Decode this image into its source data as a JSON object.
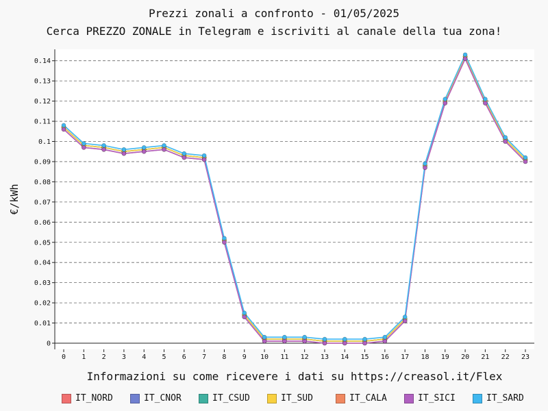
{
  "header": {
    "title": "Prezzi zonali a confronto - 01/05/2025",
    "subtitle": "Cerca PREZZO ZONALE in Telegram e iscriviti al canale della tua zona!"
  },
  "footer": {
    "text": "Informazioni su come ricevere i dati su https://creasol.it/Flex"
  },
  "chart_data": {
    "type": "line",
    "title": "Prezzi zonali a confronto - 01/05/2025",
    "xlabel": "",
    "ylabel": "€/kWh",
    "x": [
      0,
      1,
      2,
      3,
      4,
      5,
      6,
      7,
      8,
      9,
      10,
      11,
      12,
      13,
      14,
      15,
      16,
      17,
      18,
      19,
      20,
      21,
      22,
      23
    ],
    "x_ticks": [
      "0",
      "1",
      "2",
      "3",
      "4",
      "5",
      "6",
      "7",
      "8",
      "9",
      "10",
      "11",
      "12",
      "13",
      "14",
      "15",
      "16",
      "17",
      "18",
      "19",
      "20",
      "21",
      "22",
      "23"
    ],
    "y_ticks": [
      "0",
      "0.01",
      "0.02",
      "0.03",
      "0.04",
      "0.05",
      "0.06",
      "0.07",
      "0.08",
      "0.09",
      "0.1",
      "0.11",
      "0.12",
      "0.13",
      "0.14"
    ],
    "xlim": [
      0,
      23
    ],
    "ylim": [
      0,
      0.146
    ],
    "grid": "horizontal dashed",
    "legend_position": "bottom",
    "series": [
      {
        "name": "IT_NORD",
        "color": "#f07070",
        "values": [
          0.107,
          0.098,
          0.097,
          0.095,
          0.096,
          0.097,
          0.093,
          0.092,
          0.051,
          0.014,
          0.002,
          0.002,
          0.002,
          0.001,
          0.001,
          0.001,
          0.002,
          0.012,
          0.088,
          0.12,
          0.142,
          0.12,
          0.101,
          0.091
        ]
      },
      {
        "name": "IT_CNOR",
        "color": "#7080d0",
        "values": [
          0.107,
          0.098,
          0.097,
          0.095,
          0.096,
          0.097,
          0.093,
          0.092,
          0.051,
          0.014,
          0.002,
          0.002,
          0.002,
          0.001,
          0.001,
          0.001,
          0.002,
          0.012,
          0.088,
          0.12,
          0.142,
          0.12,
          0.101,
          0.091
        ]
      },
      {
        "name": "IT_CSUD",
        "color": "#40b0a0",
        "values": [
          0.107,
          0.098,
          0.097,
          0.095,
          0.096,
          0.097,
          0.093,
          0.092,
          0.051,
          0.014,
          0.002,
          0.002,
          0.002,
          0.001,
          0.001,
          0.001,
          0.002,
          0.012,
          0.088,
          0.12,
          0.142,
          0.12,
          0.101,
          0.091
        ]
      },
      {
        "name": "IT_SUD",
        "color": "#f8d040",
        "values": [
          0.107,
          0.098,
          0.097,
          0.095,
          0.096,
          0.097,
          0.093,
          0.092,
          0.051,
          0.014,
          0.002,
          0.002,
          0.002,
          0.001,
          0.001,
          0.001,
          0.002,
          0.012,
          0.088,
          0.12,
          0.142,
          0.12,
          0.101,
          0.091
        ]
      },
      {
        "name": "IT_CALA",
        "color": "#f08860",
        "values": [
          0.106,
          0.097,
          0.096,
          0.094,
          0.095,
          0.096,
          0.092,
          0.091,
          0.05,
          0.013,
          0.001,
          0.001,
          0.001,
          0.0,
          0.0,
          0.0,
          0.001,
          0.011,
          0.087,
          0.119,
          0.141,
          0.119,
          0.1,
          0.09
        ]
      },
      {
        "name": "IT_SICI",
        "color": "#b060c0",
        "values": [
          0.106,
          0.097,
          0.096,
          0.094,
          0.095,
          0.096,
          0.092,
          0.091,
          0.05,
          0.013,
          0.001,
          0.001,
          0.001,
          0.0,
          0.0,
          0.0,
          0.001,
          0.011,
          0.087,
          0.119,
          0.141,
          0.119,
          0.1,
          0.09
        ]
      },
      {
        "name": "IT_SARD",
        "color": "#40b8f0",
        "values": [
          0.108,
          0.099,
          0.098,
          0.096,
          0.097,
          0.098,
          0.094,
          0.093,
          0.052,
          0.015,
          0.003,
          0.003,
          0.003,
          0.002,
          0.002,
          0.002,
          0.003,
          0.013,
          0.089,
          0.121,
          0.143,
          0.121,
          0.102,
          0.092
        ]
      }
    ]
  }
}
